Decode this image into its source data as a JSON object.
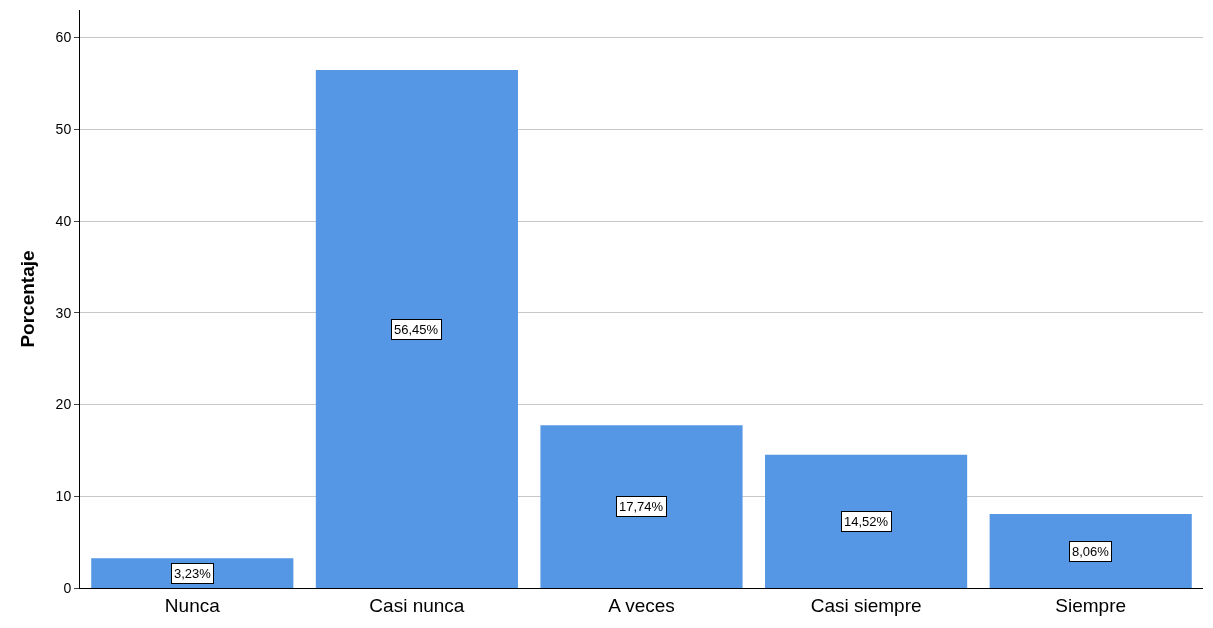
{
  "chart_data": {
    "type": "bar",
    "ylabel": "Porcentaje",
    "categories": [
      "Nunca",
      "Casi nunca",
      "A veces",
      "Casi siempre",
      "Siempre"
    ],
    "values": [
      3.23,
      56.45,
      17.74,
      14.52,
      8.06
    ],
    "value_labels": [
      "3,23%",
      "56,45%",
      "17,74%",
      "14,52%",
      "8,06%"
    ],
    "color": "#5596e5",
    "ylim": [
      0,
      63
    ],
    "yticks": [
      0,
      10,
      20,
      30,
      40,
      50,
      60
    ],
    "grid": "y"
  }
}
